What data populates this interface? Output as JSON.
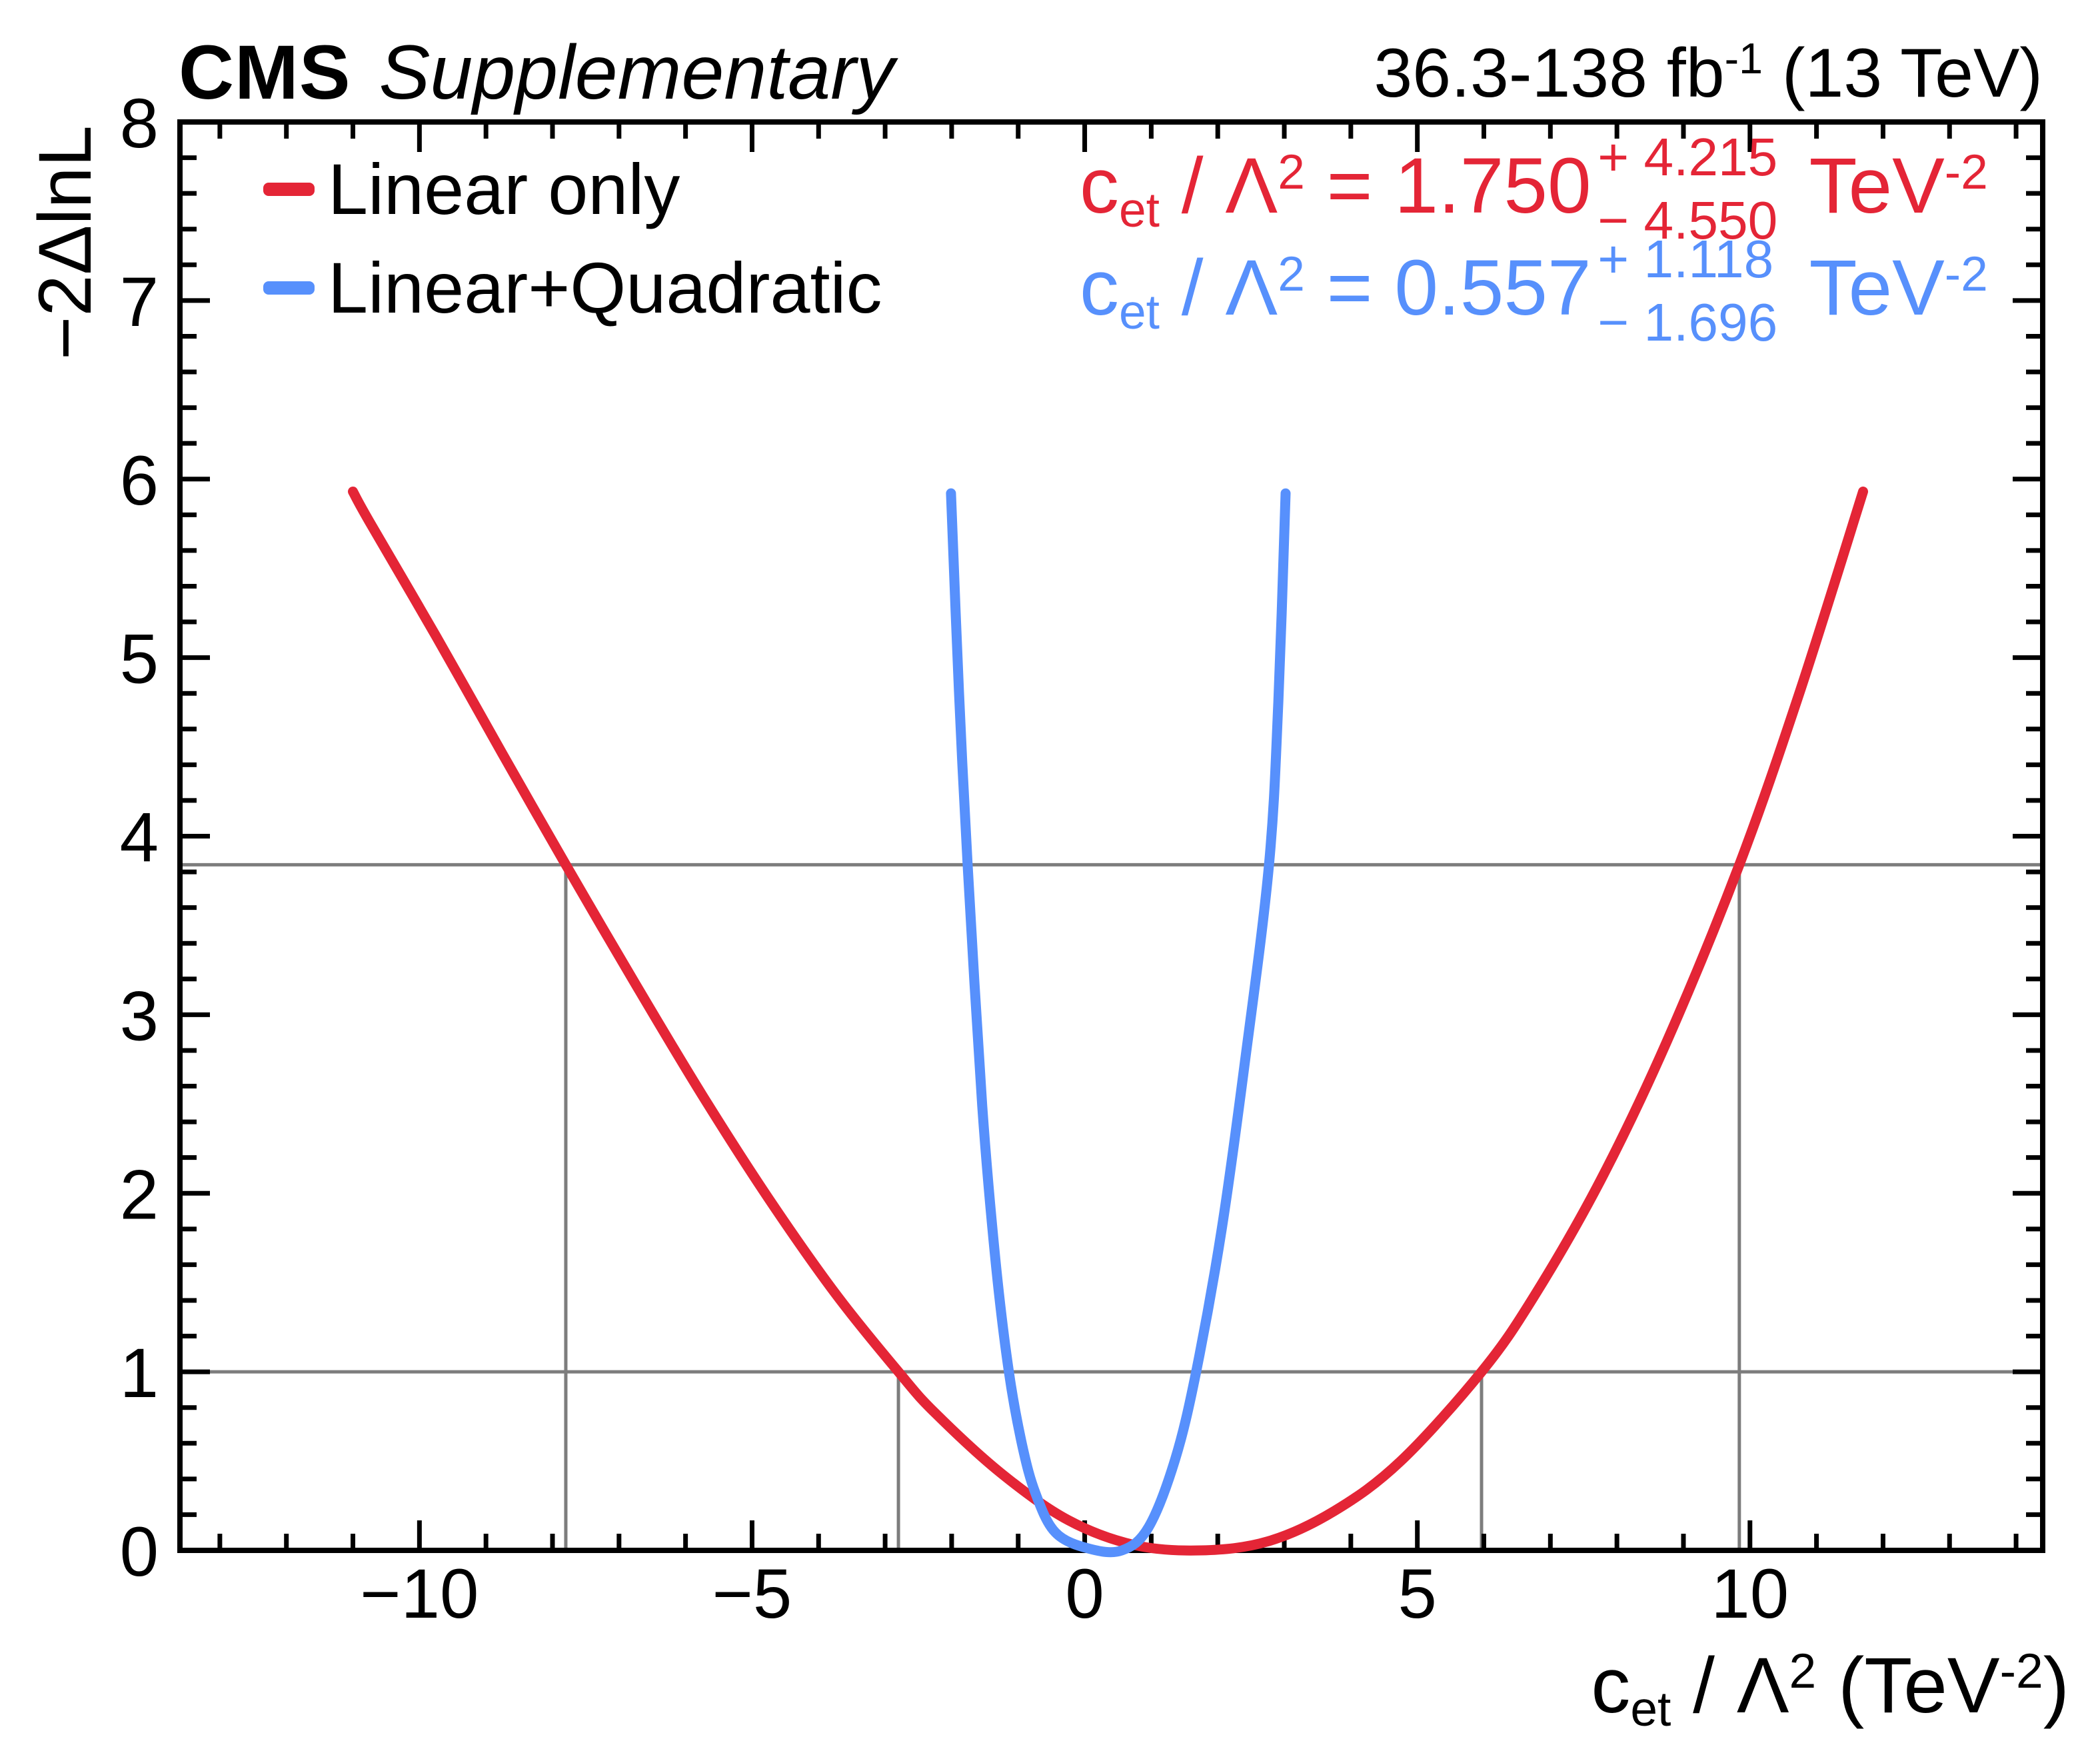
{
  "header": {
    "experiment": "CMS",
    "sublabel": "Supplementary",
    "lumi": {
      "text": "36.3-138 fb",
      "sup": "-1",
      "suffix": " (13 TeV)"
    }
  },
  "axes": {
    "y_title": "−2ΔlnL",
    "x_title": {
      "coeff": "c",
      "coeff_sub": "et",
      "slash": " / ",
      "lambda": "Λ",
      "lambda_sup": "2",
      "unit_pre": " (TeV",
      "unit_sup": "-2",
      "unit_post": ")"
    }
  },
  "legend": {
    "items": [
      {
        "label": "Linear only",
        "color": "#e42536"
      },
      {
        "label": "Linear+Quadratic",
        "color": "#5790fc"
      }
    ]
  },
  "results": [
    {
      "coeff": "c",
      "coeff_sub": "et",
      "slash": " / ",
      "lambda": "Λ",
      "lambda_sup": "2",
      "equals": " = ",
      "value": "1.750",
      "err_up": "+ 4.215",
      "err_dn": "− 4.550",
      "unit": " TeV",
      "unit_sup": "-2",
      "color": "#e42536"
    },
    {
      "coeff": "c",
      "coeff_sub": "et",
      "slash": " / ",
      "lambda": "Λ",
      "lambda_sup": "2",
      "equals": " = ",
      "value": "0.557",
      "err_up": "+ 1.118",
      "err_dn": "− 1.696",
      "unit": " TeV",
      "unit_sup": "-2",
      "color": "#5790fc"
    }
  ],
  "chart_data": {
    "type": "line",
    "title": "CMS Supplementary likelihood scan",
    "xlabel": "c_et / Lambda^2 (TeV^-2)",
    "ylabel": "-2 Delta lnL",
    "xlim": [
      -13.6,
      14.4
    ],
    "ylim": [
      0,
      8
    ],
    "grid": false,
    "legend_position": "top-left",
    "frame_color": "#000000",
    "guide_color": "#7d7d7d",
    "x_ticks": [
      {
        "value": -10,
        "label": "−10"
      },
      {
        "value": -5,
        "label": "−5"
      },
      {
        "value": 0,
        "label": "0"
      },
      {
        "value": 5,
        "label": "5"
      },
      {
        "value": 10,
        "label": "10"
      }
    ],
    "x_minor_step": 1,
    "y_ticks": [
      {
        "value": 0,
        "label": "0"
      },
      {
        "value": 1,
        "label": "1"
      },
      {
        "value": 2,
        "label": "2"
      },
      {
        "value": 3,
        "label": "3"
      },
      {
        "value": 4,
        "label": "4"
      },
      {
        "value": 5,
        "label": "5"
      },
      {
        "value": 6,
        "label": "6"
      },
      {
        "value": 7,
        "label": "7"
      },
      {
        "value": 8,
        "label": "8"
      }
    ],
    "y_minor_step": 0.2,
    "guides": {
      "horizontal": [
        {
          "y": 1
        },
        {
          "y": 3.84
        }
      ],
      "vertical": [
        {
          "x": -7.8,
          "y_top": 3.84
        },
        {
          "x": -2.8,
          "y_top": 1
        },
        {
          "x": 5.965,
          "y_top": 1
        },
        {
          "x": 9.84,
          "y_top": 3.84
        }
      ]
    },
    "series": [
      {
        "name": "Linear only",
        "color": "#e42536",
        "best_fit": 1.75,
        "err_up": 4.215,
        "err_dn": 4.55,
        "points": [
          [
            -11.0,
            5.93
          ],
          [
            -10.75,
            5.76
          ],
          [
            -9.75,
            5.12
          ],
          [
            -8.75,
            4.46
          ],
          [
            -7.8,
            3.84
          ],
          [
            -6.75,
            3.17
          ],
          [
            -5.75,
            2.55
          ],
          [
            -4.75,
            1.97
          ],
          [
            -3.75,
            1.44
          ],
          [
            -2.8,
            1.0
          ],
          [
            -2.25,
            0.77
          ],
          [
            -1.25,
            0.43
          ],
          [
            -0.25,
            0.17
          ],
          [
            0.75,
            0.03
          ],
          [
            1.75,
            0.0
          ],
          [
            2.75,
            0.05
          ],
          [
            3.75,
            0.22
          ],
          [
            4.75,
            0.5
          ],
          [
            5.965,
            1.0
          ],
          [
            6.75,
            1.42
          ],
          [
            7.75,
            2.07
          ],
          [
            8.75,
            2.85
          ],
          [
            9.84,
            3.84
          ],
          [
            10.75,
            4.81
          ],
          [
            11.7,
            5.93
          ]
        ]
      },
      {
        "name": "Linear+Quadratic",
        "color": "#5790fc",
        "best_fit": 0.557,
        "err_up": 1.118,
        "err_dn": 1.696,
        "points": [
          [
            -2.01,
            5.92
          ],
          [
            -1.89,
            4.81
          ],
          [
            -1.76,
            3.84
          ],
          [
            -1.54,
            2.49
          ],
          [
            -1.34,
            1.62
          ],
          [
            -1.14,
            1.0
          ],
          [
            -0.94,
            0.59
          ],
          [
            -0.74,
            0.32
          ],
          [
            -0.44,
            0.1
          ],
          [
            0.06,
            0.01
          ],
          [
            0.56,
            0.0
          ],
          [
            0.96,
            0.13
          ],
          [
            1.36,
            0.51
          ],
          [
            1.675,
            1.0
          ],
          [
            2.06,
            1.8
          ],
          [
            2.41,
            2.74
          ],
          [
            2.77,
            3.84
          ],
          [
            2.91,
            4.75
          ],
          [
            3.02,
            5.92
          ]
        ]
      }
    ]
  }
}
